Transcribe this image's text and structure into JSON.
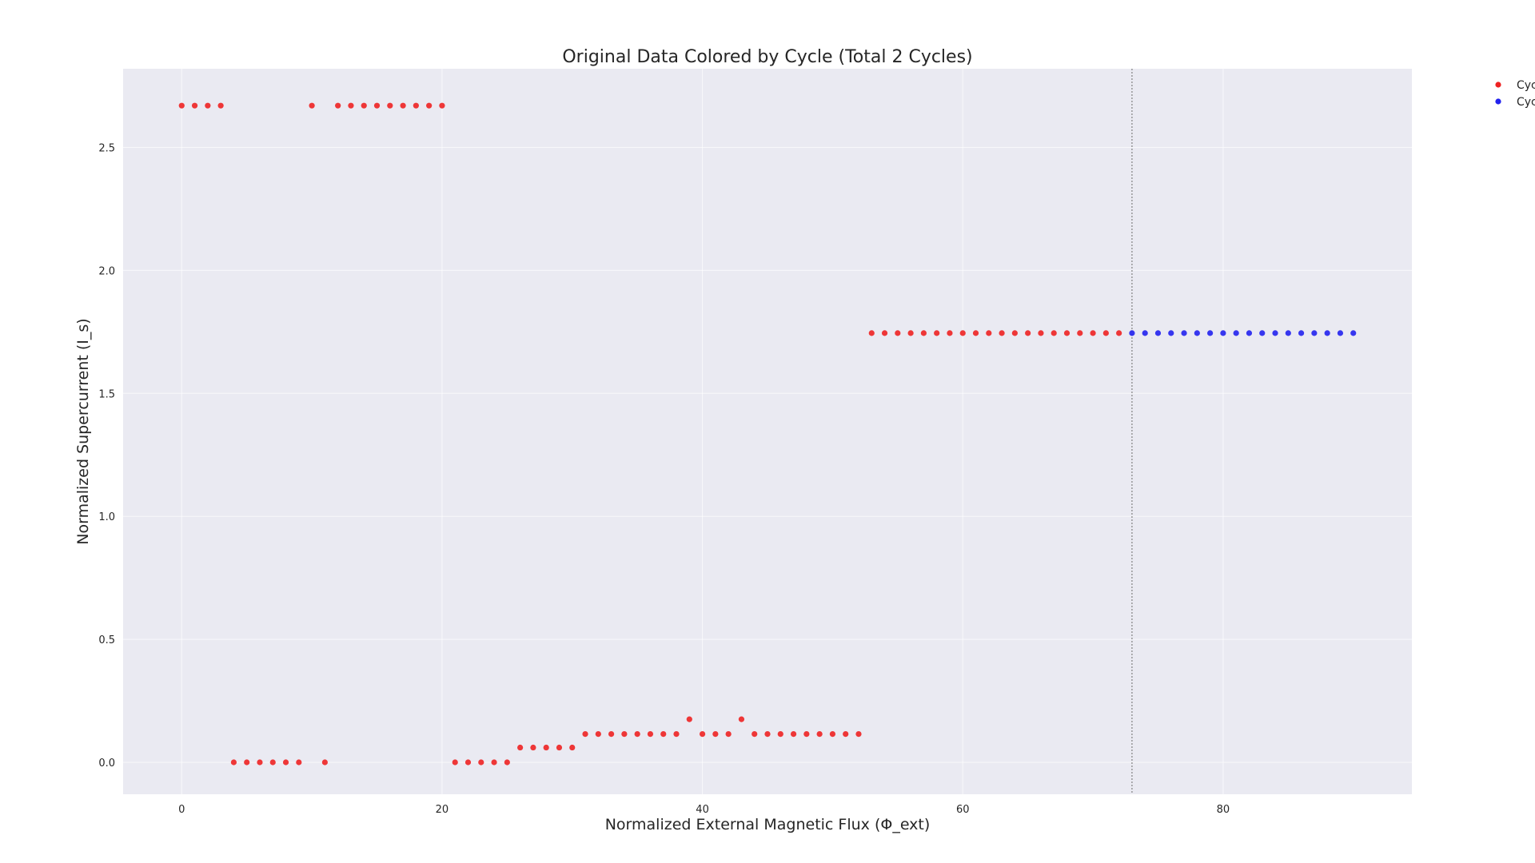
{
  "chart_data": {
    "type": "scatter",
    "title": "Original Data Colored by Cycle (Total 2 Cycles)",
    "xlabel": "Normalized External Magnetic Flux (Φ_ext)",
    "ylabel": "Normalized Supercurrent (I_s)",
    "xlim": [
      -4.5,
      94.5
    ],
    "ylim": [
      -0.13,
      2.82
    ],
    "xticks": [
      0,
      20,
      40,
      60,
      80
    ],
    "yticks": [
      0.0,
      0.5,
      1.0,
      1.5,
      2.0,
      2.5
    ],
    "xtick_labels": [
      "0",
      "20",
      "40",
      "60",
      "80"
    ],
    "ytick_labels": [
      "0.0",
      "0.5",
      "1.0",
      "1.5",
      "2.0",
      "2.5"
    ],
    "grid": true,
    "legend_position": "outside-top-right",
    "cycle_boundary_x": 73,
    "series": [
      {
        "name": "Cyc",
        "color": "#ee2222",
        "points": [
          [
            0,
            2.67
          ],
          [
            1,
            2.67
          ],
          [
            2,
            2.67
          ],
          [
            3,
            2.67
          ],
          [
            4,
            0.0
          ],
          [
            5,
            0.0
          ],
          [
            6,
            0.0
          ],
          [
            7,
            0.0
          ],
          [
            8,
            0.0
          ],
          [
            9,
            0.0
          ],
          [
            10,
            2.67
          ],
          [
            11,
            0.0
          ],
          [
            12,
            2.67
          ],
          [
            13,
            2.67
          ],
          [
            14,
            2.67
          ],
          [
            15,
            2.67
          ],
          [
            16,
            2.67
          ],
          [
            17,
            2.67
          ],
          [
            18,
            2.67
          ],
          [
            19,
            2.67
          ],
          [
            20,
            2.67
          ],
          [
            21,
            0.0
          ],
          [
            22,
            0.0
          ],
          [
            23,
            0.0
          ],
          [
            24,
            0.0
          ],
          [
            25,
            0.0
          ],
          [
            26,
            0.06
          ],
          [
            27,
            0.06
          ],
          [
            28,
            0.06
          ],
          [
            29,
            0.06
          ],
          [
            30,
            0.06
          ],
          [
            31,
            0.115
          ],
          [
            32,
            0.115
          ],
          [
            33,
            0.115
          ],
          [
            34,
            0.115
          ],
          [
            35,
            0.115
          ],
          [
            36,
            0.115
          ],
          [
            37,
            0.115
          ],
          [
            38,
            0.115
          ],
          [
            39,
            0.175
          ],
          [
            40,
            0.115
          ],
          [
            41,
            0.115
          ],
          [
            42,
            0.115
          ],
          [
            43,
            0.175
          ],
          [
            44,
            0.115
          ],
          [
            45,
            0.115
          ],
          [
            46,
            0.115
          ],
          [
            47,
            0.115
          ],
          [
            48,
            0.115
          ],
          [
            49,
            0.115
          ],
          [
            50,
            0.115
          ],
          [
            51,
            0.115
          ],
          [
            52,
            0.115
          ],
          [
            53,
            1.745
          ],
          [
            54,
            1.745
          ],
          [
            55,
            1.745
          ],
          [
            56,
            1.745
          ],
          [
            57,
            1.745
          ],
          [
            58,
            1.745
          ],
          [
            59,
            1.745
          ],
          [
            60,
            1.745
          ],
          [
            61,
            1.745
          ],
          [
            62,
            1.745
          ],
          [
            63,
            1.745
          ],
          [
            64,
            1.745
          ],
          [
            65,
            1.745
          ],
          [
            66,
            1.745
          ],
          [
            67,
            1.745
          ],
          [
            68,
            1.745
          ],
          [
            69,
            1.745
          ],
          [
            70,
            1.745
          ],
          [
            71,
            1.745
          ],
          [
            72,
            1.745
          ]
        ]
      },
      {
        "name": "Cyc",
        "color": "#2222ee",
        "points": [
          [
            73,
            1.745
          ],
          [
            74,
            1.745
          ],
          [
            75,
            1.745
          ],
          [
            76,
            1.745
          ],
          [
            77,
            1.745
          ],
          [
            78,
            1.745
          ],
          [
            79,
            1.745
          ],
          [
            80,
            1.745
          ],
          [
            81,
            1.745
          ],
          [
            82,
            1.745
          ],
          [
            83,
            1.745
          ],
          [
            84,
            1.745
          ],
          [
            85,
            1.745
          ],
          [
            86,
            1.745
          ],
          [
            87,
            1.745
          ],
          [
            88,
            1.745
          ],
          [
            89,
            1.745
          ],
          [
            90,
            1.745
          ]
        ]
      }
    ],
    "colors": {
      "plot_background": "#eaeaf2",
      "grid": "#ffffff",
      "boundary_line": "#808080"
    }
  }
}
